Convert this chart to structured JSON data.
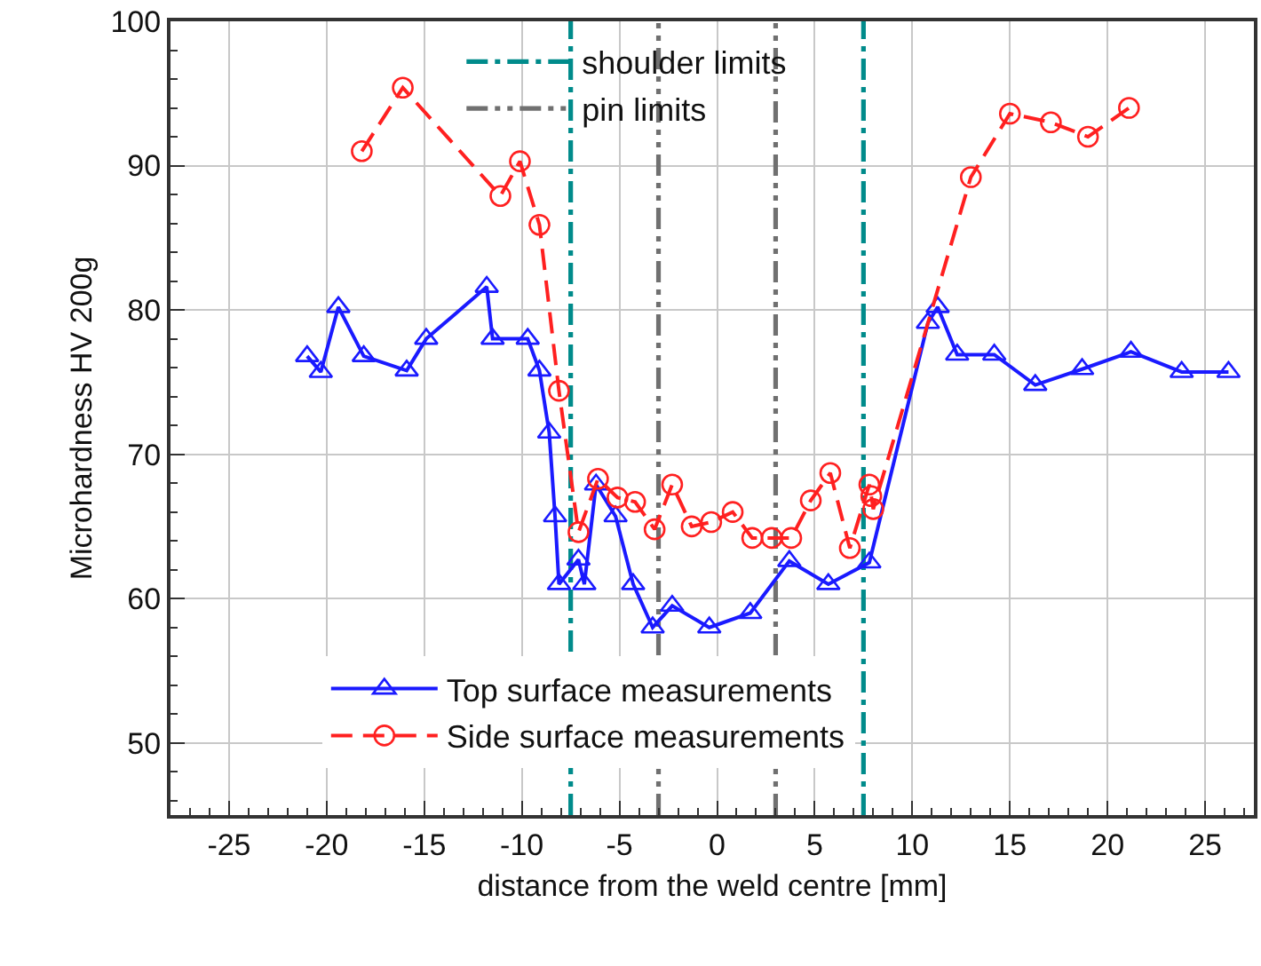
{
  "chart_data": {
    "type": "line",
    "xlabel": "distance from the weld centre [mm]",
    "ylabel": "Microhardness HV 200g",
    "xlim": [
      -28,
      27.5
    ],
    "xticks": [
      -25,
      -20,
      -15,
      -10,
      -5,
      0,
      5,
      10,
      15,
      20,
      25
    ],
    "ylim": [
      45,
      100
    ],
    "yticks": [
      50,
      60,
      70,
      80,
      90,
      100
    ],
    "grid": true,
    "legend": "bottom left",
    "series": [
      {
        "name": "Top surface measurements",
        "color": "#1a1aff",
        "marker": "triangle",
        "line_style": "solid",
        "x": [
          -21.0,
          -20.3,
          -19.4,
          -18.1,
          -15.9,
          -14.9,
          -11.8,
          -11.5,
          -9.7,
          -9.1,
          -8.6,
          -8.3,
          -8.1,
          -7.1,
          -6.8,
          -6.2,
          -5.2,
          -4.3,
          -3.3,
          -2.3,
          -0.4,
          1.7,
          3.7,
          5.7,
          7.8,
          10.8,
          11.3,
          12.3,
          14.2,
          16.3,
          18.7,
          21.2,
          23.8,
          26.2
        ],
        "values": [
          76.8,
          75.7,
          80.2,
          76.8,
          75.8,
          78.0,
          81.6,
          78.0,
          78.0,
          75.8,
          71.5,
          65.7,
          61.0,
          62.7,
          61.0,
          67.9,
          65.7,
          61.0,
          58.0,
          59.5,
          58.0,
          59.0,
          62.6,
          61.0,
          62.5,
          79.1,
          80.2,
          76.9,
          76.9,
          74.8,
          75.9,
          77.1,
          75.7,
          75.7
        ]
      },
      {
        "name": "Side surface measurements",
        "color": "#ff2020",
        "marker": "circle",
        "line_style": "dashed",
        "x": [
          -18.2,
          -16.1,
          -11.1,
          -10.1,
          -9.1,
          -8.1,
          -7.1,
          -6.1,
          -5.1,
          -4.2,
          -3.2,
          -2.3,
          -1.3,
          -0.3,
          0.8,
          1.8,
          2.8,
          3.8,
          4.8,
          5.8,
          6.8,
          7.8,
          7.9,
          8.0,
          13.0,
          15.0,
          17.1,
          19.0,
          21.1
        ],
        "values": [
          91.0,
          95.4,
          87.9,
          90.3,
          85.9,
          74.4,
          64.6,
          68.3,
          67.0,
          66.7,
          64.8,
          67.9,
          65.0,
          65.3,
          66.0,
          64.2,
          64.2,
          64.2,
          66.8,
          68.7,
          63.5,
          67.9,
          67.1,
          66.2,
          89.2,
          93.6,
          93.0,
          92.0,
          94.0
        ]
      }
    ],
    "ref_lines": [
      {
        "axis": "x",
        "value": -7.5,
        "label": "shoulder limits",
        "color": "#008b8b",
        "line_style": "dashdot"
      },
      {
        "axis": "x",
        "value": 7.5,
        "label": null,
        "color": "#008b8b",
        "line_style": "dashdot"
      },
      {
        "axis": "x",
        "value": -3,
        "label": "pin limits",
        "color": "#707070",
        "line_style": "dashdotdot"
      },
      {
        "axis": "x",
        "value": 3,
        "label": null,
        "color": "#707070",
        "line_style": "dashdotdot"
      }
    ]
  }
}
